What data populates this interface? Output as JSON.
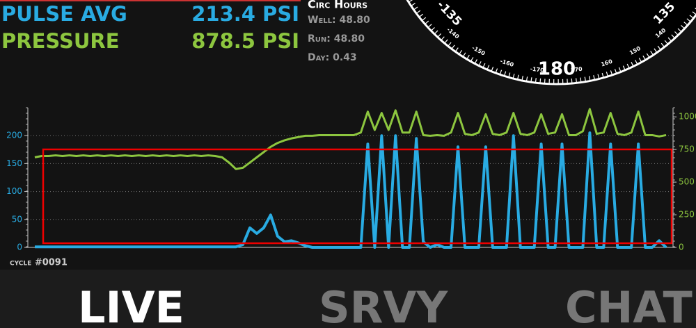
{
  "header": {
    "pulse_label": "PULSE AVG",
    "pulse_value": "213.4 PSI",
    "pressure_label": "PRESSURE",
    "pressure_value": "878.5 PSI"
  },
  "circ_hours": {
    "title": "Circ Hours",
    "well": "Well: 48.80",
    "run": "Run: 48.80",
    "day": "Day: 0.43"
  },
  "gauge": {
    "labels": [
      "-135",
      "-140",
      "-150",
      "-160",
      "-170",
      "180",
      "170",
      "160",
      "150",
      "140",
      "135"
    ]
  },
  "cycle": "cycle #0091",
  "nav": [
    "LIVE",
    "SRVY",
    "CHAT"
  ],
  "chart_data": {
    "type": "line",
    "x": [
      0,
      1,
      2,
      3,
      4,
      5,
      6,
      7,
      8,
      9,
      10,
      11,
      12,
      13,
      14,
      15,
      16,
      17,
      18,
      19,
      20,
      21,
      22,
      23,
      24,
      25,
      26,
      27,
      28,
      29,
      30,
      31,
      32,
      33,
      34,
      35,
      36,
      37,
      38,
      39,
      40,
      41,
      42,
      43,
      44,
      45,
      46,
      47,
      48,
      49,
      50,
      51,
      52,
      53,
      54,
      55,
      56,
      57,
      58,
      59,
      60,
      61,
      62,
      63,
      64,
      65,
      66,
      67,
      68,
      69,
      70,
      71,
      72,
      73,
      74,
      75,
      76,
      77,
      78,
      79,
      80,
      81,
      82,
      83,
      84,
      85,
      86,
      87,
      88,
      89,
      90,
      91
    ],
    "xlim": [
      -1,
      92
    ],
    "ylim": [
      0,
      250
    ],
    "yticks": [
      0,
      50,
      100,
      150,
      200
    ],
    "y2lim": [
      0,
      1070
    ],
    "y2ticks": [
      0,
      250,
      500,
      750,
      1000
    ],
    "grid": true,
    "series": [
      {
        "name": "PULSE AVG",
        "color": "#29abe2",
        "values": [
          1,
          1,
          1,
          1,
          1,
          1,
          1,
          1,
          1,
          1,
          1,
          1,
          1,
          1,
          1,
          1,
          1,
          1,
          1,
          1,
          1,
          1,
          1,
          1,
          1,
          1,
          1,
          1,
          1,
          1,
          5,
          35,
          25,
          35,
          58,
          20,
          10,
          12,
          8,
          3,
          0,
          0,
          0,
          0,
          0,
          0,
          0,
          0,
          185,
          0,
          200,
          0,
          200,
          0,
          0,
          195,
          10,
          0,
          5,
          0,
          0,
          180,
          0,
          0,
          0,
          180,
          0,
          0,
          0,
          200,
          0,
          0,
          0,
          185,
          0,
          0,
          185,
          0,
          0,
          0,
          205,
          0,
          0,
          185,
          0,
          0,
          0,
          185,
          0,
          0,
          12,
          0
        ]
      },
      {
        "name": "PRESSURE",
        "color": "#8dc63f",
        "axis": "y2",
        "values": [
          690,
          700,
          700,
          705,
          700,
          705,
          700,
          705,
          700,
          705,
          700,
          705,
          700,
          705,
          700,
          705,
          700,
          705,
          700,
          705,
          700,
          705,
          700,
          705,
          700,
          705,
          700,
          690,
          650,
          600,
          610,
          650,
          690,
          730,
          770,
          800,
          820,
          835,
          845,
          855,
          855,
          860,
          860,
          860,
          860,
          860,
          860,
          880,
          1040,
          900,
          1030,
          900,
          1050,
          880,
          880,
          1040,
          860,
          855,
          860,
          855,
          880,
          1030,
          870,
          860,
          880,
          1020,
          870,
          860,
          880,
          1030,
          870,
          860,
          880,
          1020,
          870,
          880,
          1020,
          860,
          860,
          890,
          1060,
          870,
          880,
          1030,
          870,
          860,
          880,
          1040,
          860,
          860,
          850,
          860
        ]
      }
    ]
  }
}
